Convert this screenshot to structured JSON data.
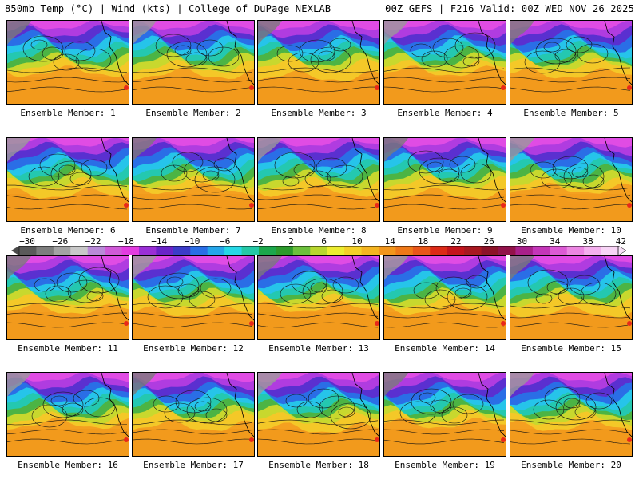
{
  "header": {
    "left": "850mb Temp (°C) | Wind (kts) | College of DuPage NEXLAB",
    "right": "00Z GEFS | F216 Valid: 00Z WED NOV 26 2025"
  },
  "members": [
    "Ensemble Member: 1",
    "Ensemble Member: 2",
    "Ensemble Member: 3",
    "Ensemble Member: 4",
    "Ensemble Member: 5",
    "Ensemble Member: 6",
    "Ensemble Member: 7",
    "Ensemble Member: 8",
    "Ensemble Member: 9",
    "Ensemble Member: 10",
    "Ensemble Member: 11",
    "Ensemble Member: 12",
    "Ensemble Member: 13",
    "Ensemble Member: 14",
    "Ensemble Member: 15",
    "Ensemble Member: 16",
    "Ensemble Member: 17",
    "Ensemble Member: 18",
    "Ensemble Member: 19",
    "Ensemble Member: 20"
  ],
  "colorbar": {
    "ticks": [
      "−30",
      "−26",
      "−22",
      "−18",
      "−14",
      "−10",
      "−6",
      "−2",
      "2",
      "6",
      "10",
      "14",
      "18",
      "22",
      "26",
      "30",
      "34",
      "38",
      "42"
    ],
    "colors": [
      "#5a5a5a",
      "#7d7d7d",
      "#a3a3a3",
      "#c8c8c8",
      "#b98ad8",
      "#d05ad8",
      "#e23ce0",
      "#9a2fd6",
      "#6a24c8",
      "#3c3cc8",
      "#2a6ee6",
      "#25a6ea",
      "#26d8e6",
      "#24c8a6",
      "#1ca84c",
      "#2c9a2c",
      "#6cc03c",
      "#b8d62e",
      "#ecec30",
      "#f4d028",
      "#f4b420",
      "#f2961c",
      "#ee7818",
      "#e8561a",
      "#dc2a18",
      "#c4141c",
      "#a81820",
      "#8c1228",
      "#92124a",
      "#a8208a",
      "#c436b8",
      "#dc5ad4",
      "#ec86e2",
      "#f4b0ee",
      "#f8d4f6"
    ]
  }
}
